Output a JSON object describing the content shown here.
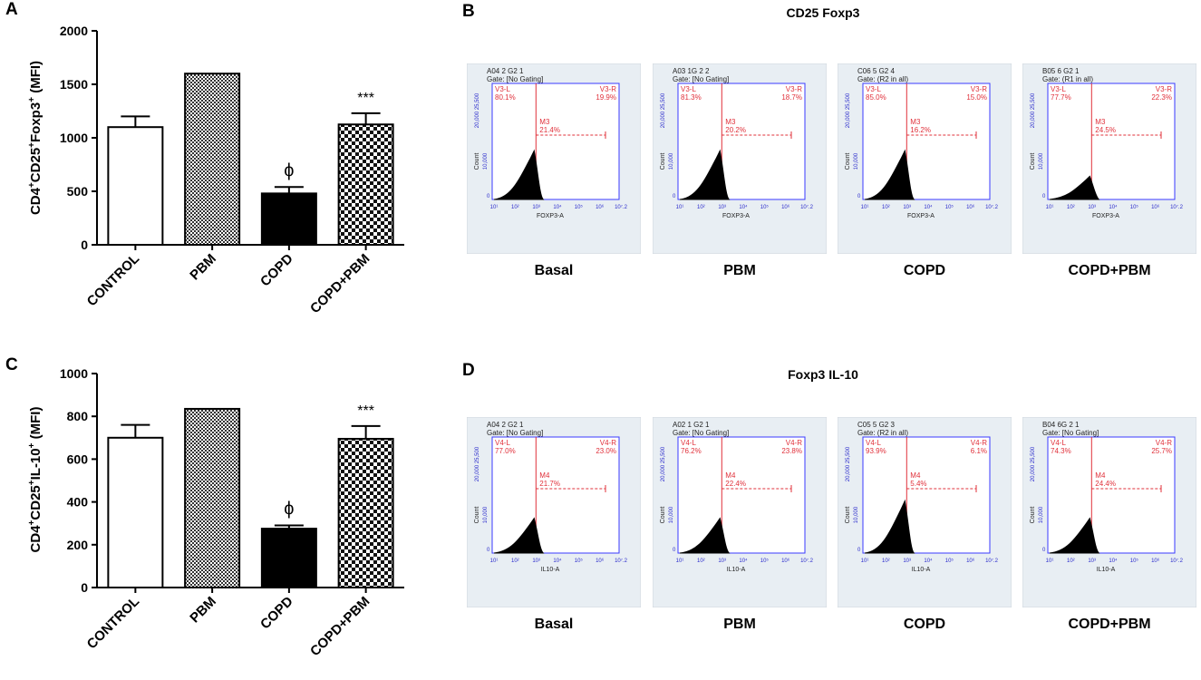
{
  "panels": {
    "a": {
      "letter": "A",
      "ylabel_base": "CD4",
      "ylabel_sup1": "+",
      "ylabel_mid1": "CD25",
      "ylabel_sup2": "+",
      "ylabel_mid2": "Foxp3",
      "ylabel_sup3": "+",
      "ylabel_unit": " (MFI)"
    },
    "b": {
      "letter": "B",
      "title": "CD25 Foxp3"
    },
    "c": {
      "letter": "C",
      "ylabel_base": "CD4",
      "ylabel_sup1": "+",
      "ylabel_mid1": "CD25",
      "ylabel_sup2": "+",
      "ylabel_mid2": "IL-10",
      "ylabel_sup3": "+",
      "ylabel_unit": " (MFI)"
    },
    "d": {
      "letter": "D",
      "title": "Foxp3 IL-10"
    }
  },
  "chart_data": [
    {
      "id": "A",
      "type": "bar",
      "categories": [
        "CONTROL",
        "PBM",
        "COPD",
        "COPD+PBM"
      ],
      "values": [
        1100,
        1600,
        480,
        1125
      ],
      "errors": [
        100,
        0,
        60,
        105
      ],
      "fills": [
        "white",
        "dense-check",
        "black",
        "check"
      ],
      "annotations": [
        "",
        "",
        "ϕ",
        "***"
      ],
      "ylabel": "CD4+CD25+Foxp3+ (MFI)",
      "ylim": [
        0,
        2000
      ],
      "yticks": [
        0,
        500,
        1000,
        1500,
        2000
      ]
    },
    {
      "id": "C",
      "type": "bar",
      "categories": [
        "CONTROL",
        "PBM",
        "COPD",
        "COPD+PBM"
      ],
      "values": [
        700,
        835,
        275,
        695
      ],
      "errors": [
        60,
        0,
        15,
        60
      ],
      "fills": [
        "white",
        "dense-check",
        "black",
        "check"
      ],
      "annotations": [
        "",
        "",
        "ϕ",
        "***"
      ],
      "ylabel": "CD4+CD25+IL-10+ (MFI)",
      "ylim": [
        0,
        1000
      ],
      "yticks": [
        0,
        200,
        400,
        600,
        800,
        1000
      ]
    }
  ],
  "histograms": {
    "foxp3": [
      {
        "condition": "Basal",
        "header1": "A04 2 G2 1",
        "header2": "Gate: [No Gating]",
        "left_gate": "V3-L",
        "left_pct": "80.1%",
        "right_gate": "V3-R",
        "right_pct": "19.9%",
        "marker": "M3",
        "marker_pct": "21.4%",
        "xaxis": "FOXP3-A",
        "yaxis": "Count",
        "peak": 0.42
      },
      {
        "condition": "PBM",
        "header1": "A03 1G 2 2",
        "header2": "Gate: [No Gating]",
        "left_gate": "V3-L",
        "left_pct": "81.3%",
        "right_gate": "V3-R",
        "right_pct": "18.7%",
        "marker": "M3",
        "marker_pct": "20.2%",
        "xaxis": "FOXP3-A",
        "yaxis": "Count",
        "peak": 0.42
      },
      {
        "condition": "COPD",
        "header1": "C06 5 G2 4",
        "header2": "Gate: (R2 in all)",
        "left_gate": "V3-L",
        "left_pct": "85.0%",
        "right_gate": "V3-R",
        "right_pct": "15.0%",
        "marker": "M3",
        "marker_pct": "16.2%",
        "xaxis": "FOXP3-A",
        "yaxis": "Count",
        "peak": 0.42
      },
      {
        "condition": "COPD+PBM",
        "header1": "B05 6 G2 1",
        "header2": "Gate: (R1 in all)",
        "left_gate": "V3-L",
        "left_pct": "77.7%",
        "right_gate": "V3-R",
        "right_pct": "22.3%",
        "marker": "M3",
        "marker_pct": "24.5%",
        "xaxis": "FOXP3-A",
        "yaxis": "Count",
        "peak": 0.2
      }
    ],
    "il10": [
      {
        "condition": "Basal",
        "header1": "A04 2 G2 1",
        "header2": "Gate: [No Gating]",
        "left_gate": "V4-L",
        "left_pct": "77.0%",
        "right_gate": "V4-R",
        "right_pct": "23.0%",
        "marker": "M4",
        "marker_pct": "21.7%",
        "xaxis": "IL10-A",
        "yaxis": "Count",
        "peak": 0.3
      },
      {
        "condition": "PBM",
        "header1": "A02 1 G2 1",
        "header2": "Gate: [No Gating]",
        "left_gate": "V4-L",
        "left_pct": "76.2%",
        "right_gate": "V4-R",
        "right_pct": "23.8%",
        "marker": "M4",
        "marker_pct": "22.4%",
        "xaxis": "IL10-A",
        "yaxis": "Count",
        "peak": 0.3
      },
      {
        "condition": "COPD",
        "header1": "C05 5 G2 3",
        "header2": "Gate: (R2 in all)",
        "left_gate": "V4-L",
        "left_pct": "93.9%",
        "right_gate": "V4-R",
        "right_pct": "6.1%",
        "marker": "M4",
        "marker_pct": "5.4%",
        "xaxis": "IL10-A",
        "yaxis": "Count",
        "peak": 0.45
      },
      {
        "condition": "COPD+PBM",
        "header1": "B04 6G 2 1",
        "header2": "Gate: [No Gating]",
        "left_gate": "V4-L",
        "left_pct": "74.3%",
        "right_gate": "V4-R",
        "right_pct": "25.7%",
        "marker": "M4",
        "marker_pct": "24.4%",
        "xaxis": "IL10-A",
        "yaxis": "Count",
        "peak": 0.3
      }
    ],
    "y_ticks": [
      "0",
      "10,000",
      "20,000 25,500"
    ],
    "x_ticks": [
      "10¹",
      "10²",
      "10³",
      "10⁴",
      "10⁵",
      "10⁶",
      "10⁷.2"
    ]
  }
}
